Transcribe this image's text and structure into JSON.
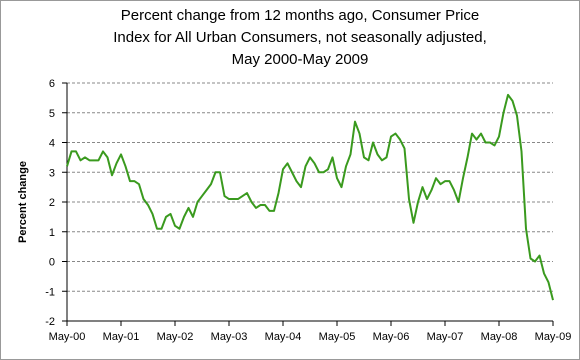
{
  "chart_data": {
    "type": "line",
    "title": [
      "Percent change from 12 months ago, Consumer Price",
      "Index for All Urban Consumers, not seasonally adjusted,",
      "May 2000-May 2009"
    ],
    "y_label": "Percent change",
    "categories": [
      "May-00",
      null,
      null,
      null,
      null,
      null,
      null,
      null,
      null,
      null,
      null,
      null,
      "May-01",
      null,
      null,
      null,
      null,
      null,
      null,
      null,
      null,
      null,
      null,
      null,
      "May-02",
      null,
      null,
      null,
      null,
      null,
      null,
      null,
      null,
      null,
      null,
      null,
      "May-03",
      null,
      null,
      null,
      null,
      null,
      null,
      null,
      null,
      null,
      null,
      null,
      "May-04",
      null,
      null,
      null,
      null,
      null,
      null,
      null,
      null,
      null,
      null,
      null,
      "May-05",
      null,
      null,
      null,
      null,
      null,
      null,
      null,
      null,
      null,
      null,
      null,
      "May-06",
      null,
      null,
      null,
      null,
      null,
      null,
      null,
      null,
      null,
      null,
      null,
      "May-07",
      null,
      null,
      null,
      null,
      null,
      null,
      null,
      null,
      null,
      null,
      null,
      "May-08",
      null,
      null,
      null,
      null,
      null,
      null,
      null,
      null,
      null,
      null,
      null,
      "May-09"
    ],
    "series": [
      {
        "name": "Percent change",
        "color": "#3a9a1e",
        "values": [
          3.2,
          3.7,
          3.7,
          3.4,
          3.5,
          3.4,
          3.4,
          3.4,
          3.7,
          3.5,
          2.9,
          3.3,
          3.6,
          3.2,
          2.7,
          2.7,
          2.6,
          2.1,
          1.9,
          1.6,
          1.1,
          1.1,
          1.5,
          1.6,
          1.2,
          1.1,
          1.5,
          1.8,
          1.5,
          2.0,
          2.2,
          2.4,
          2.6,
          3.0,
          3.0,
          2.2,
          2.1,
          2.1,
          2.1,
          2.2,
          2.3,
          2.0,
          1.8,
          1.9,
          1.9,
          1.7,
          1.7,
          2.3,
          3.1,
          3.3,
          3.0,
          2.7,
          2.5,
          3.2,
          3.5,
          3.3,
          3.0,
          3.0,
          3.1,
          3.5,
          2.8,
          2.5,
          3.2,
          3.6,
          4.7,
          4.3,
          3.5,
          3.4,
          4.0,
          3.6,
          3.4,
          3.5,
          4.2,
          4.3,
          4.1,
          3.8,
          2.1,
          1.3,
          2.0,
          2.5,
          2.1,
          2.4,
          2.8,
          2.6,
          2.7,
          2.7,
          2.4,
          2.0,
          2.8,
          3.5,
          4.3,
          4.1,
          4.3,
          4.0,
          4.0,
          3.9,
          4.2,
          5.0,
          5.6,
          5.4,
          4.9,
          3.7,
          1.1,
          0.1,
          0.0,
          0.2,
          -0.4,
          -0.7,
          -1.3
        ]
      }
    ],
    "ylim": [
      -2,
      6
    ],
    "yticks": [
      -2,
      -1,
      0,
      1,
      2,
      3,
      4,
      5,
      6
    ],
    "grid": true
  }
}
